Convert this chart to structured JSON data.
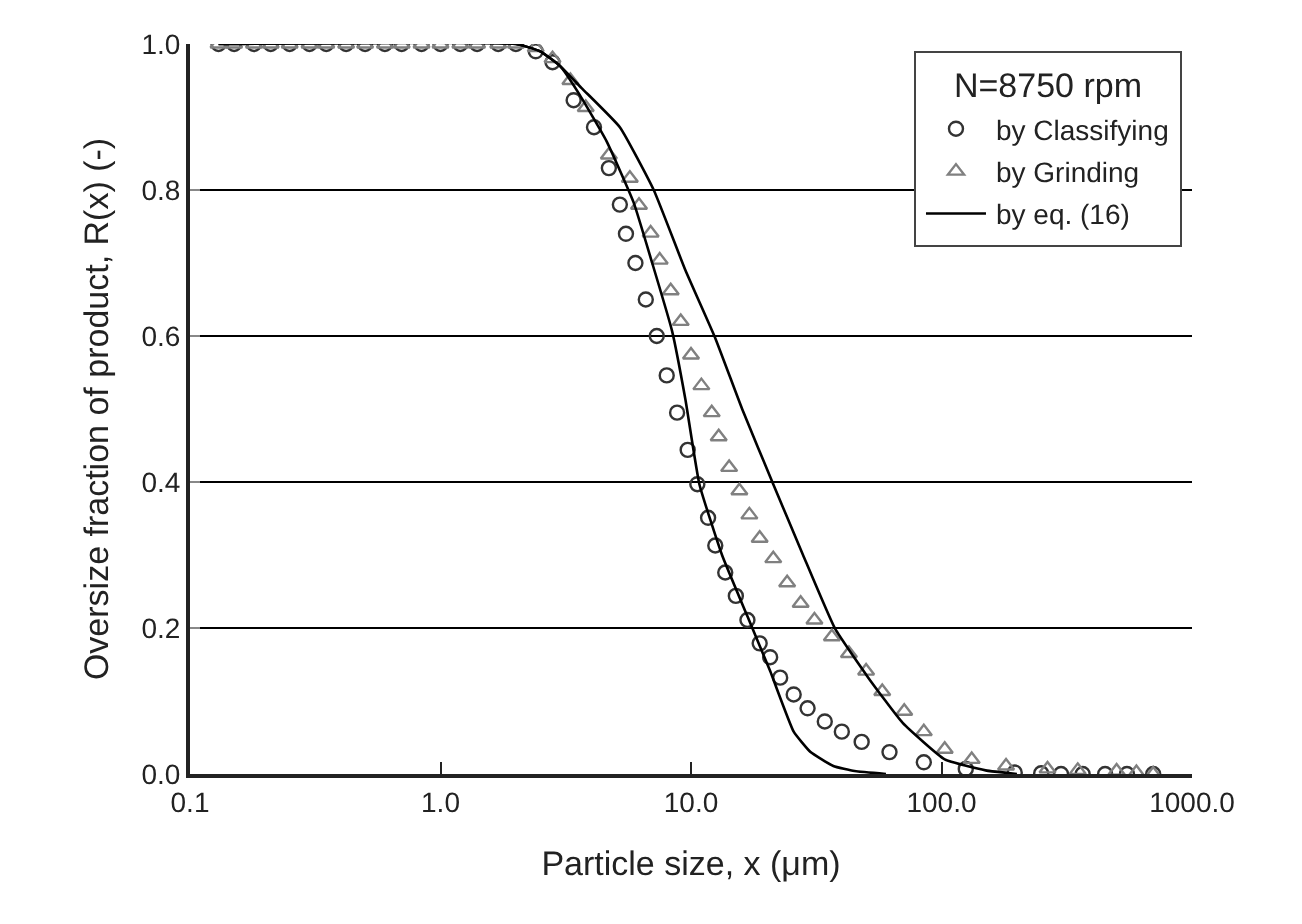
{
  "chart_data": {
    "type": "scatter",
    "xlabel": "Particle size, x (μm)",
    "ylabel": "Oversize fraction of product, R(x) (-)",
    "legend_title": "N=8750 rpm",
    "log": "x",
    "grid": "y",
    "legend": "top right",
    "xlim": [
      0.1,
      1000
    ],
    "xticks": [
      {
        "value": 0.1,
        "label": "0.1"
      },
      {
        "value": 1,
        "label": "1.0"
      },
      {
        "value": 10,
        "label": "10.0"
      },
      {
        "value": 100,
        "label": "100.0"
      },
      {
        "value": 1000,
        "label": "1000.0"
      }
    ],
    "ylim": [
      0,
      1
    ],
    "yticks": [
      {
        "value": 0,
        "label": "0.0"
      },
      {
        "value": 0.2,
        "label": "0.2"
      },
      {
        "value": 0.4,
        "label": "0.4"
      },
      {
        "value": 0.6,
        "label": "0.6"
      },
      {
        "value": 0.8,
        "label": "0.8"
      },
      {
        "value": 1,
        "label": "1.0"
      }
    ],
    "series": [
      {
        "name": "by Classifying",
        "marker": "circle",
        "color": "#333333",
        "x": [
          0.13,
          0.15,
          0.18,
          0.21,
          0.25,
          0.3,
          0.35,
          0.42,
          0.5,
          0.6,
          0.7,
          0.84,
          1.0,
          1.2,
          1.4,
          1.7,
          2.0,
          2.4,
          2.8,
          3.4,
          4.1,
          4.7,
          5.2,
          5.5,
          6.0,
          6.6,
          7.3,
          8.0,
          8.8,
          9.7,
          10.6,
          11.7,
          12.5,
          13.7,
          15.1,
          16.8,
          18.8,
          20.7,
          22.7,
          25.7,
          29.2,
          34.2,
          40,
          48,
          62,
          85,
          125,
          196,
          250,
          300,
          366,
          450,
          550,
          700
        ],
        "values": [
          1,
          1,
          1,
          1,
          1,
          1,
          1,
          1,
          1,
          1,
          1,
          1,
          1,
          1,
          1,
          1,
          1,
          0.99,
          0.975,
          0.923,
          0.886,
          0.83,
          0.78,
          0.74,
          0.7,
          0.65,
          0.6,
          0.546,
          0.495,
          0.444,
          0.397,
          0.351,
          0.313,
          0.276,
          0.244,
          0.211,
          0.179,
          0.16,
          0.132,
          0.109,
          0.09,
          0.072,
          0.058,
          0.044,
          0.03,
          0.016,
          0.007,
          0.002,
          0.001,
          0,
          0,
          0,
          0,
          0
        ]
      },
      {
        "name": "by Grinding",
        "marker": "triangle",
        "color": "#808080",
        "x": [
          0.13,
          0.15,
          0.18,
          0.21,
          0.25,
          0.3,
          0.35,
          0.42,
          0.5,
          0.6,
          0.7,
          0.84,
          1.0,
          1.2,
          1.4,
          1.7,
          2.0,
          2.4,
          2.8,
          3.3,
          3.8,
          4.7,
          5.7,
          6.2,
          6.9,
          7.5,
          8.3,
          9.1,
          10,
          11,
          12.1,
          12.9,
          14.2,
          15.6,
          17.1,
          18.8,
          21.3,
          24.2,
          27.4,
          31.1,
          36.5,
          42.7,
          50,
          58,
          71,
          85,
          103,
          132,
          181,
          265,
          350,
          500,
          600,
          700
        ],
        "values": [
          1,
          1,
          1,
          1,
          1,
          1,
          1,
          1,
          1,
          1,
          1,
          1,
          1,
          1,
          1,
          1,
          1,
          0.995,
          0.98,
          0.95,
          0.913,
          0.848,
          0.816,
          0.779,
          0.741,
          0.704,
          0.662,
          0.62,
          0.574,
          0.532,
          0.495,
          0.462,
          0.42,
          0.388,
          0.355,
          0.323,
          0.295,
          0.262,
          0.234,
          0.211,
          0.188,
          0.165,
          0.141,
          0.113,
          0.086,
          0.058,
          0.034,
          0.02,
          0.011,
          0.007,
          0.005,
          0.004,
          0.002,
          0
        ]
      },
      {
        "name": "by eq. (16)",
        "type": "line",
        "color": "#000000",
        "x": [
          0.13,
          2,
          2.5,
          3,
          3.65,
          5.2,
          7.1,
          9.5,
          12.5,
          16,
          21.3,
          28,
          37.6,
          51,
          70,
          103,
          150,
          200
        ],
        "values": [
          1,
          1,
          0.99,
          0.97,
          0.94,
          0.886,
          0.8,
          0.69,
          0.597,
          0.5,
          0.397,
          0.3,
          0.199,
          0.132,
          0.07,
          0.02,
          0.005,
          0
        ]
      },
      {
        "type": "line",
        "color": "#000000",
        "x": [
          0.13,
          2,
          2.5,
          3,
          3.6,
          4.6,
          5.9,
          7,
          8.4,
          9.5,
          10.8,
          13.3,
          16.8,
          20.7,
          25.7,
          30,
          37,
          45,
          60
        ],
        "values": [
          1,
          1,
          0.99,
          0.97,
          0.93,
          0.867,
          0.783,
          0.7,
          0.607,
          0.513,
          0.397,
          0.3,
          0.216,
          0.141,
          0.058,
          0.03,
          0.011,
          0.004,
          0
        ]
      }
    ]
  }
}
